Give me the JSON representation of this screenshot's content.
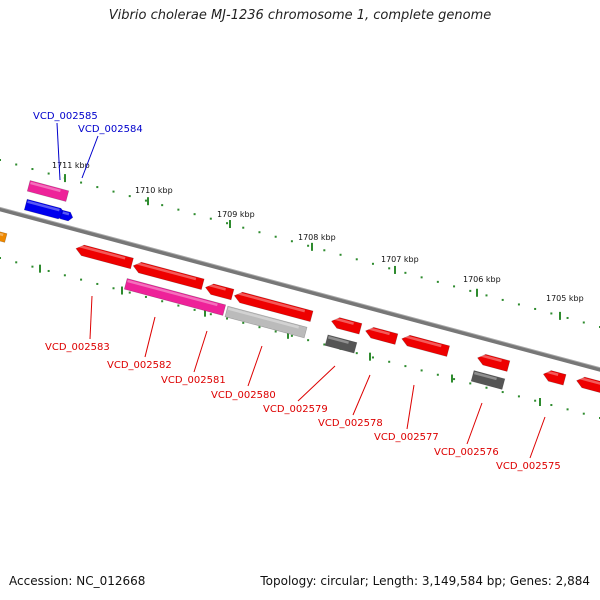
{
  "title": "Vibrio cholerae MJ-1236 chromosome 1, complete genome",
  "footer": {
    "accession": "Accession: NC_012668",
    "summary": "Topology: circular; Length: 3,149,584 bp; Genes: 2,884"
  },
  "colors": {
    "backbone": "#777777",
    "ticks": "#2e8b2e",
    "forward_label": "#0000cc",
    "reverse_label": "#dd0000",
    "gene_red": "#ee0000",
    "gene_pink": "#ee2299",
    "gene_blue": "#0000ee",
    "gene_gray": "#555555",
    "gene_lightgray": "#bbbbbb"
  },
  "scale_labels": [
    "1711 kbp",
    "1710 kbp",
    "1709 kbp",
    "1708 kbp",
    "1707 kbp",
    "1706 kbp",
    "1705 kbp"
  ],
  "forward_genes": [
    {
      "label": "VCD_002585",
      "color": "pink"
    },
    {
      "label": "VCD_002584",
      "color": "blue"
    }
  ],
  "reverse_genes": [
    {
      "label": "VCD_002583",
      "color": "red"
    },
    {
      "label": "VCD_002582",
      "color": "pink"
    },
    {
      "label": "VCD_002581",
      "color": "red"
    },
    {
      "label": "VCD_002580",
      "color": "lightgray"
    },
    {
      "label": "VCD_002579",
      "color": "gray"
    },
    {
      "label": "VCD_002578",
      "color": "red"
    },
    {
      "label": "VCD_002577",
      "color": "red"
    },
    {
      "label": "VCD_002576",
      "color": "gray"
    },
    {
      "label": "VCD_002575",
      "color": "red"
    }
  ]
}
